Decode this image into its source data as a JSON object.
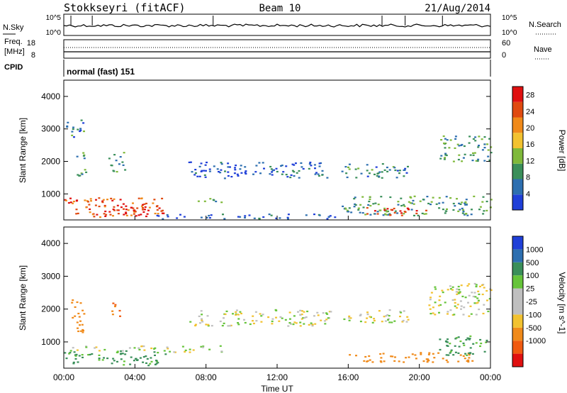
{
  "header": {
    "station": "Stokkseyri (fitACF)",
    "beam": "Beam 10",
    "date": "21/Aug/2014"
  },
  "noise_panel": {
    "left_label": "N.Sky",
    "right_label": "N.Search",
    "tick_top": "10^5",
    "tick_bottom": "10^0"
  },
  "freq_panel": {
    "left_label_1": "Freq.",
    "left_label_2": "[MHz]",
    "left_tick_top": "18",
    "left_tick_bottom": "8",
    "right_label": "Nave",
    "right_tick_top": "60",
    "right_tick_bottom": "0"
  },
  "cpid": {
    "label": "CPID",
    "value": "normal (fast) 151"
  },
  "colors": {
    "power_scale": [
      "#1f3fd8",
      "#2d6fb0",
      "#3a8f5a",
      "#7fb93a",
      "#f2c230",
      "#f08a1a",
      "#e04a10",
      "#e01010"
    ],
    "velocity_scale": [
      "#e01010",
      "#f05a10",
      "#f08a1a",
      "#f2c230",
      "#bfbfbf",
      "#bfbfbf",
      "#66c43a",
      "#3a8f5a",
      "#2d6fb0",
      "#1f3fd8"
    ]
  },
  "chart_data": [
    {
      "type": "heatmap",
      "panel": "power",
      "ylabel": "Slant Range [km]",
      "yticks": [
        "1000",
        "2000",
        "3000",
        "4000"
      ],
      "ylim": [
        200,
        4500
      ],
      "xlim_hours": [
        0,
        24
      ],
      "colorbar_label": "Power [dB]",
      "colorbar_ticks": [
        "4",
        "8",
        "12",
        "16",
        "20",
        "24",
        "28"
      ],
      "colorbar_range": [
        0,
        30
      ],
      "regions": [
        {
          "t0": 0.0,
          "t1": 5.6,
          "r0": 300,
          "r1": 900,
          "level": 24
        },
        {
          "t0": 2.2,
          "t1": 4.8,
          "r0": 320,
          "r1": 700,
          "level": 28
        },
        {
          "t0": 0.1,
          "t1": 1.1,
          "r0": 2700,
          "r1": 3300,
          "level": 8
        },
        {
          "t0": 0.6,
          "t1": 1.2,
          "r0": 1500,
          "r1": 2300,
          "level": 10
        },
        {
          "t0": 2.5,
          "t1": 3.4,
          "r0": 1700,
          "r1": 2300,
          "level": 8
        },
        {
          "t0": 7.3,
          "t1": 9.0,
          "r0": 750,
          "r1": 900,
          "level": 10
        },
        {
          "t0": 7.0,
          "t1": 15.0,
          "r0": 1500,
          "r1": 2000,
          "level": 4
        },
        {
          "t0": 15.6,
          "t1": 19.4,
          "r0": 1500,
          "r1": 1950,
          "level": 8
        },
        {
          "t0": 15.6,
          "t1": 24.0,
          "r0": 350,
          "r1": 950,
          "level": 10
        },
        {
          "t0": 17.0,
          "t1": 20.5,
          "r0": 350,
          "r1": 600,
          "level": 26
        },
        {
          "t0": 21.0,
          "t1": 24.0,
          "r0": 2000,
          "r1": 2800,
          "level": 10
        },
        {
          "t0": 5.0,
          "t1": 15.5,
          "r0": 250,
          "r1": 400,
          "level": 4
        }
      ]
    },
    {
      "type": "heatmap",
      "panel": "velocity",
      "ylabel": "Slant Range [km]",
      "yticks": [
        "1000",
        "2000",
        "3000",
        "4000"
      ],
      "ylim": [
        200,
        4500
      ],
      "xlim_hours": [
        0,
        24
      ],
      "xticks": [
        "00:00",
        "04:00",
        "08:00",
        "12:00",
        "16:00",
        "20:00",
        "00:00"
      ],
      "xlabel": "Time UT",
      "colorbar_label": "Velocity [m s^-1]",
      "colorbar_ticks": [
        "1000",
        "500",
        "100",
        "25",
        "-25",
        "-100",
        "-500",
        "-1000"
      ],
      "regions": [
        {
          "t0": 0.0,
          "t1": 5.8,
          "r0": 300,
          "r1": 750,
          "level": 150
        },
        {
          "t0": 0.2,
          "t1": 5.8,
          "r0": 750,
          "r1": 900,
          "level": 0
        },
        {
          "t0": 0.4,
          "t1": 1.2,
          "r0": 1300,
          "r1": 2300,
          "level": -300
        },
        {
          "t0": 2.6,
          "t1": 3.3,
          "r0": 1800,
          "r1": 2200,
          "level": -500
        },
        {
          "t0": 5.5,
          "t1": 9.0,
          "r0": 700,
          "r1": 900,
          "level": 0
        },
        {
          "t0": 7.0,
          "t1": 15.0,
          "r0": 1500,
          "r1": 2000,
          "level": 0
        },
        {
          "t0": 15.6,
          "t1": 19.4,
          "r0": 1600,
          "r1": 2000,
          "level": 0
        },
        {
          "t0": 16.0,
          "t1": 23.0,
          "r0": 400,
          "r1": 700,
          "level": -200
        },
        {
          "t0": 20.5,
          "t1": 24.0,
          "r0": 1800,
          "r1": 2800,
          "level": 0
        },
        {
          "t0": 21.0,
          "t1": 24.0,
          "r0": 600,
          "r1": 1200,
          "level": 150
        }
      ]
    }
  ]
}
